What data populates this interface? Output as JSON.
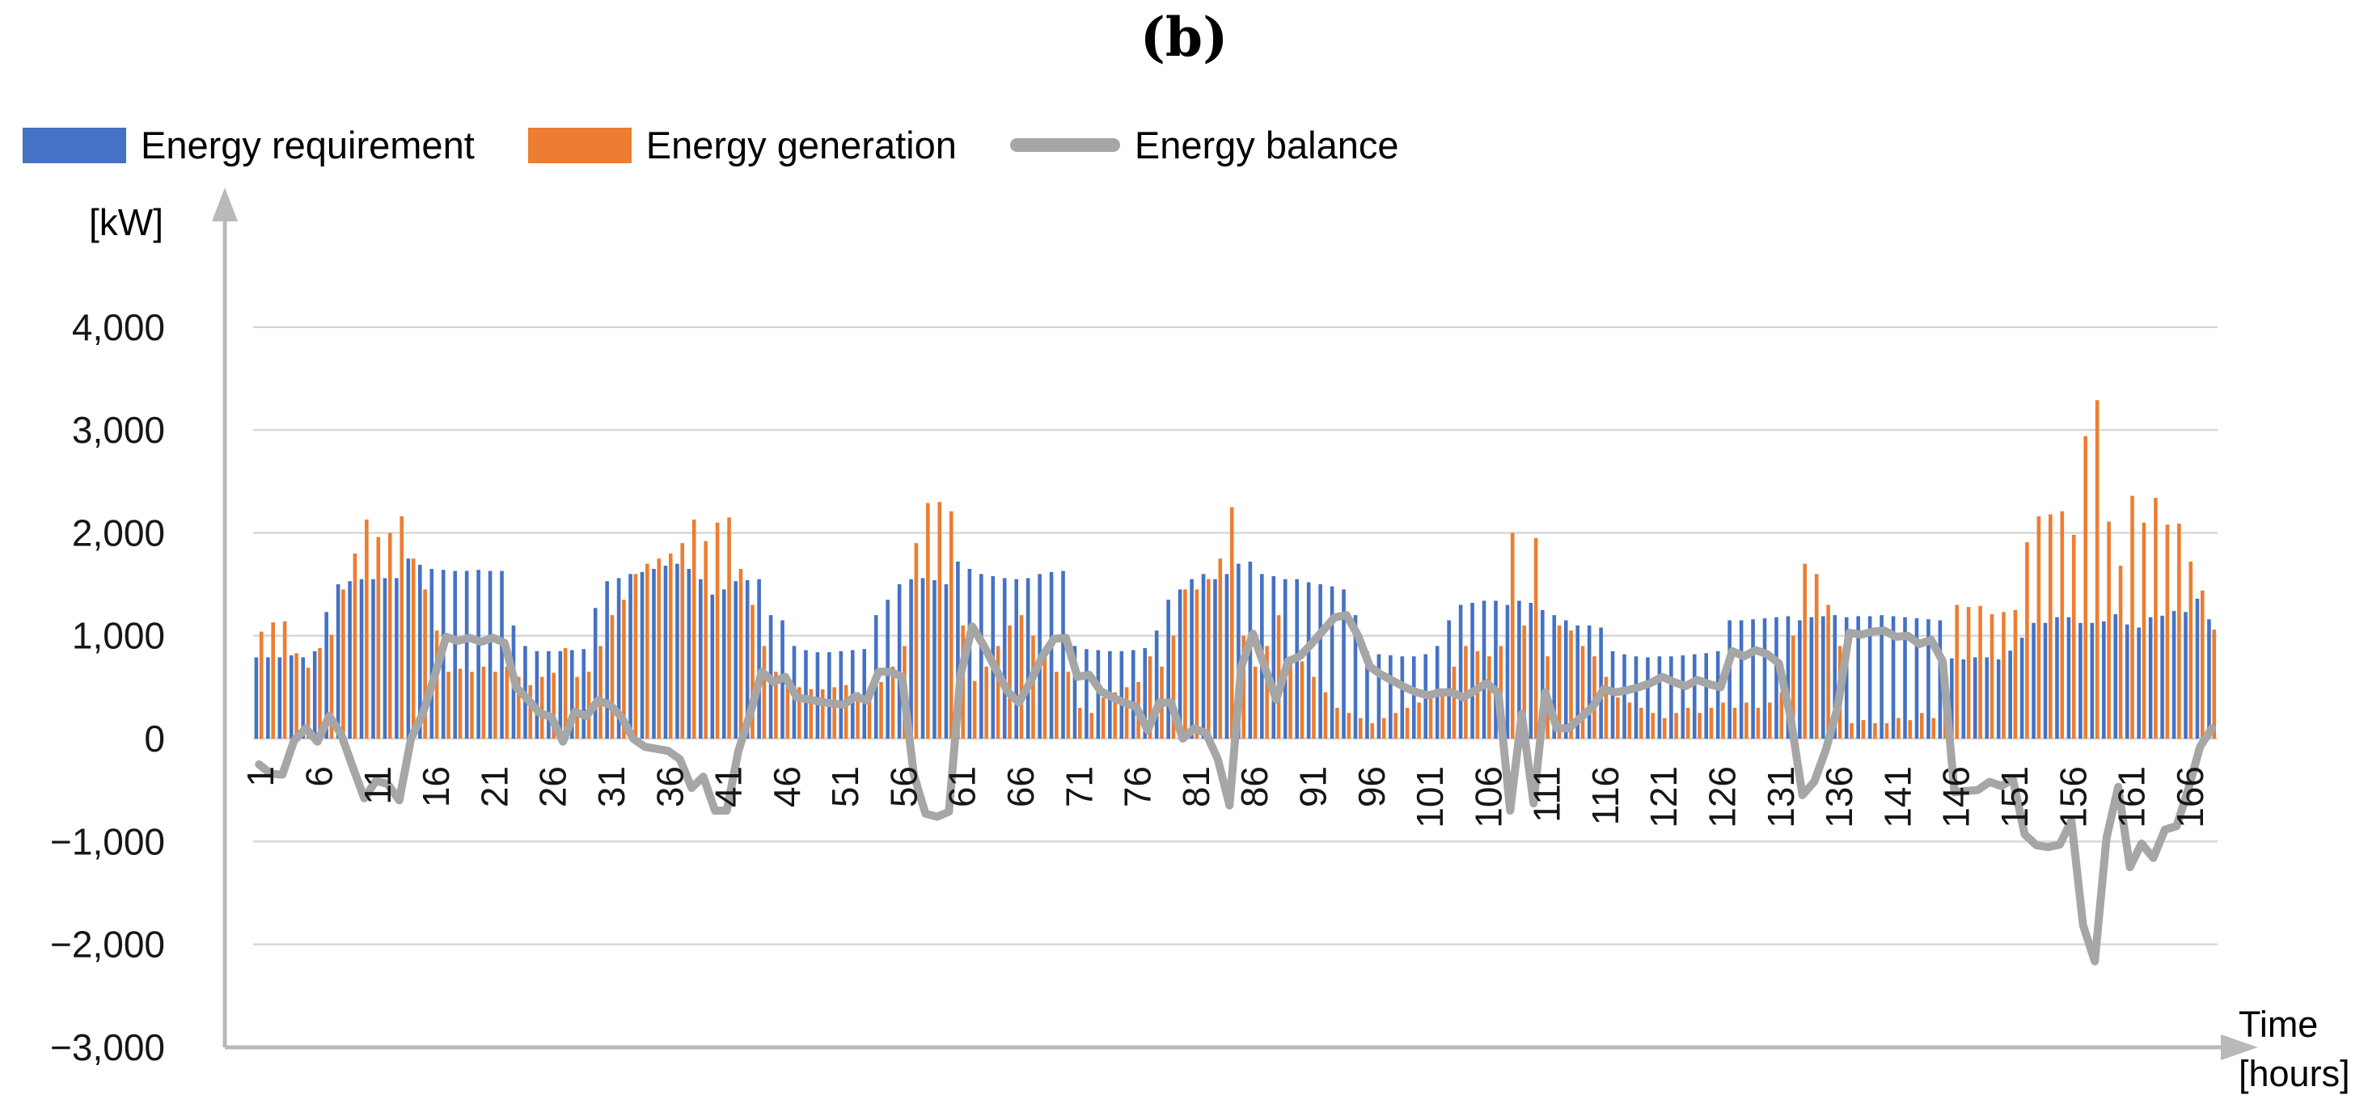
{
  "title": "(b)",
  "y_axis": {
    "unit": "[kW]",
    "ticks": [
      {
        "label": "4,000",
        "value": 4000
      },
      {
        "label": "3,000",
        "value": 3000
      },
      {
        "label": "2,000",
        "value": 2000
      },
      {
        "label": "1,000",
        "value": 1000
      },
      {
        "label": "0",
        "value": 0
      },
      {
        "label": "−1,000",
        "value": -1000
      },
      {
        "label": "−2,000",
        "value": -2000
      },
      {
        "label": "−3,000",
        "value": -3000
      }
    ]
  },
  "x_axis": {
    "title_line1": "Time",
    "title_line2": "[hours]",
    "tick_labels": [
      "1",
      "6",
      "11",
      "16",
      "21",
      "26",
      "31",
      "36",
      "41",
      "46",
      "51",
      "56",
      "61",
      "66",
      "71",
      "76",
      "81",
      "86",
      "91",
      "96",
      "101",
      "106",
      "111",
      "116",
      "121",
      "126",
      "131",
      "136",
      "141",
      "146",
      "151",
      "156",
      "161",
      "166"
    ]
  },
  "chart_data": {
    "type": "bar",
    "title": "(b)",
    "xlabel": "Time [hours]",
    "ylabel": "[kW]",
    "x_hours_start": 1,
    "x_hours_end": 168,
    "ylim": [
      -3000,
      4000
    ],
    "grid": true,
    "legend_position": "top-left",
    "colors": {
      "requirement": "#4472C4",
      "generation": "#ED7D31",
      "balance": "#A6A6A6",
      "gridline": "#D6D6D6",
      "axis": "#B9B9B9"
    },
    "series": [
      {
        "name": "Energy requirement",
        "type": "bar",
        "color": "#4472C4",
        "values": [
          790,
          790,
          790,
          810,
          790,
          850,
          1230,
          1500,
          1530,
          1550,
          1550,
          1560,
          1560,
          1750,
          1690,
          1650,
          1640,
          1630,
          1630,
          1640,
          1630,
          1630,
          1100,
          900,
          850,
          850,
          850,
          860,
          870,
          1270,
          1530,
          1560,
          1600,
          1620,
          1650,
          1680,
          1700,
          1650,
          1550,
          1400,
          1450,
          1530,
          1540,
          1550,
          1200,
          1150,
          900,
          860,
          840,
          840,
          850,
          860,
          870,
          1200,
          1350,
          1500,
          1550,
          1560,
          1540,
          1500,
          1720,
          1650,
          1600,
          1580,
          1560,
          1550,
          1560,
          1600,
          1620,
          1630,
          900,
          870,
          860,
          850,
          850,
          860,
          880,
          1050,
          1350,
          1450,
          1550,
          1600,
          1550,
          1600,
          1700,
          1720,
          1600,
          1580,
          1550,
          1550,
          1520,
          1500,
          1480,
          1450,
          1200,
          850,
          820,
          810,
          800,
          800,
          820,
          900,
          1150,
          1300,
          1320,
          1340,
          1340,
          1300,
          1340,
          1320,
          1250,
          1200,
          1150,
          1100,
          1100,
          1080,
          850,
          820,
          800,
          790,
          800,
          800,
          810,
          820,
          830,
          850,
          1150,
          1150,
          1160,
          1170,
          1180,
          1190,
          1150,
          1180,
          1190,
          1200,
          1180,
          1190,
          1190,
          1200,
          1190,
          1180,
          1170,
          1160,
          1150,
          780,
          770,
          790,
          790,
          770,
          855,
          980,
          1125,
          1125,
          1180,
          1180,
          1125,
          1125,
          1140,
          1210,
          1110,
          1080,
          1180,
          1195,
          1240,
          1230,
          1360,
          1160
        ]
      },
      {
        "name": "Energy generation",
        "type": "bar",
        "color": "#ED7D31",
        "values": [
          1040,
          1130,
          1140,
          830,
          690,
          880,
          1010,
          1450,
          1800,
          2130,
          1960,
          2000,
          2160,
          1750,
          1450,
          1050,
          650,
          680,
          650,
          700,
          650,
          700,
          600,
          520,
          600,
          640,
          880,
          600,
          650,
          900,
          1200,
          1350,
          1600,
          1700,
          1750,
          1800,
          1900,
          2130,
          1920,
          2100,
          2150,
          1650,
          1300,
          900,
          650,
          550,
          500,
          480,
          480,
          500,
          520,
          450,
          500,
          550,
          700,
          900,
          1900,
          2290,
          2300,
          2210,
          1100,
          560,
          700,
          900,
          1100,
          1200,
          1000,
          800,
          650,
          650,
          300,
          250,
          400,
          450,
          500,
          550,
          800,
          700,
          1000,
          1450,
          1450,
          1550,
          1750,
          2250,
          1000,
          700,
          900,
          1200,
          800,
          750,
          600,
          450,
          300,
          250,
          200,
          150,
          200,
          250,
          300,
          350,
          400,
          450,
          700,
          900,
          850,
          800,
          900,
          2000,
          1100,
          1950,
          800,
          1100,
          1050,
          900,
          800,
          600,
          400,
          350,
          300,
          250,
          200,
          250,
          300,
          250,
          300,
          350,
          300,
          350,
          300,
          350,
          450,
          1000,
          1700,
          1600,
          1300,
          900,
          150,
          180,
          150,
          150,
          200,
          180,
          250,
          200,
          400,
          1300,
          1280,
          1290,
          1210,
          1230,
          1250,
          1910,
          2160,
          2180,
          2210,
          1980,
          2940,
          3290,
          2110,
          1680,
          2360,
          2100,
          2340,
          2080,
          2090,
          1720,
          1440,
          1060
        ]
      },
      {
        "name": "Energy balance",
        "type": "line",
        "color": "#A6A6A6",
        "values": [
          -250,
          -340,
          -350,
          -20,
          100,
          -30,
          220,
          50,
          -270,
          -580,
          -410,
          -440,
          -600,
          0,
          240,
          600,
          990,
          950,
          980,
          940,
          980,
          930,
          500,
          380,
          250,
          210,
          -30,
          260,
          220,
          370,
          330,
          210,
          0,
          -80,
          -100,
          -120,
          -200,
          -480,
          -370,
          -700,
          -700,
          -120,
          240,
          650,
          550,
          600,
          400,
          380,
          360,
          340,
          330,
          410,
          370,
          650,
          650,
          600,
          -350,
          -730,
          -760,
          -710,
          620,
          1090,
          900,
          680,
          460,
          350,
          560,
          800,
          970,
          980,
          600,
          620,
          460,
          400,
          350,
          310,
          80,
          350,
          350,
          0,
          100,
          50,
          -200,
          -650,
          700,
          1020,
          700,
          380,
          750,
          800,
          920,
          1050,
          1180,
          1200,
          1000,
          700,
          620,
          560,
          500,
          450,
          420,
          450,
          450,
          400,
          470,
          540,
          440,
          -700,
          240,
          -630,
          450,
          100,
          100,
          200,
          300,
          480,
          450,
          470,
          500,
          540,
          600,
          550,
          510,
          570,
          530,
          500,
          850,
          800,
          860,
          820,
          730,
          190,
          -550,
          -420,
          -110,
          300,
          1030,
          1010,
          1040,
          1050,
          990,
          1000,
          920,
          960,
          750,
          -520,
          -510,
          -500,
          -420,
          -460,
          -395,
          -930,
          -1035,
          -1055,
          -1030,
          -800,
          -1815,
          -2165,
          -970,
          -470,
          -1250,
          -1020,
          -1160,
          -885,
          -850,
          -490,
          -80,
          100
        ]
      }
    ]
  }
}
